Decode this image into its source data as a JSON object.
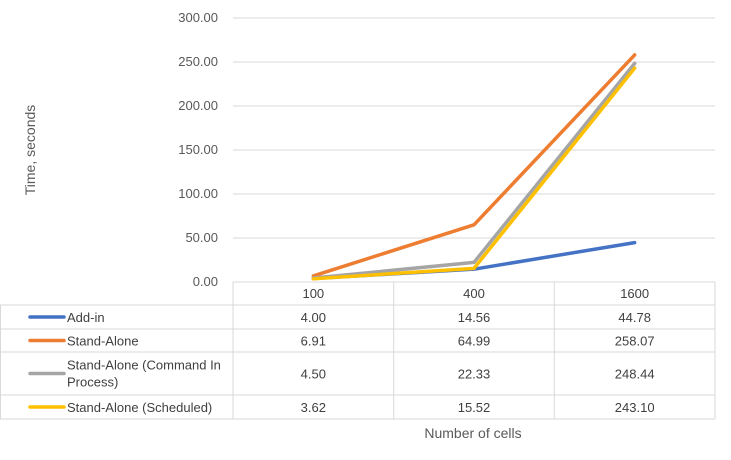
{
  "chart_data": {
    "type": "line",
    "title": "",
    "xlabel": "Number of cells",
    "ylabel": "Time, seconds",
    "ylim": [
      0,
      300
    ],
    "yticks": [
      "0.00",
      "50.00",
      "100.00",
      "150.00",
      "200.00",
      "250.00",
      "300.00"
    ],
    "categories": [
      "100",
      "400",
      "1600"
    ],
    "grid": true,
    "legend": "data-table",
    "series": [
      {
        "name": "Add-in",
        "color": "#4472C4",
        "values": [
          4.0,
          14.56,
          44.78
        ],
        "labels": [
          "4.00",
          "14.56",
          "44.78"
        ]
      },
      {
        "name": "Stand-Alone",
        "color": "#ED7D31",
        "values": [
          6.91,
          64.99,
          258.07
        ],
        "labels": [
          "6.91",
          "64.99",
          "258.07"
        ]
      },
      {
        "name": "Stand-Alone (Command In Process)",
        "color": "#A5A5A5",
        "values": [
          4.5,
          22.33,
          248.44
        ],
        "labels": [
          "4.50",
          "22.33",
          "248.44"
        ]
      },
      {
        "name": "Stand-Alone (Scheduled)",
        "color": "#FFC000",
        "values": [
          3.62,
          15.52,
          243.1
        ],
        "labels": [
          "3.62",
          "15.52",
          "243.10"
        ]
      }
    ]
  }
}
